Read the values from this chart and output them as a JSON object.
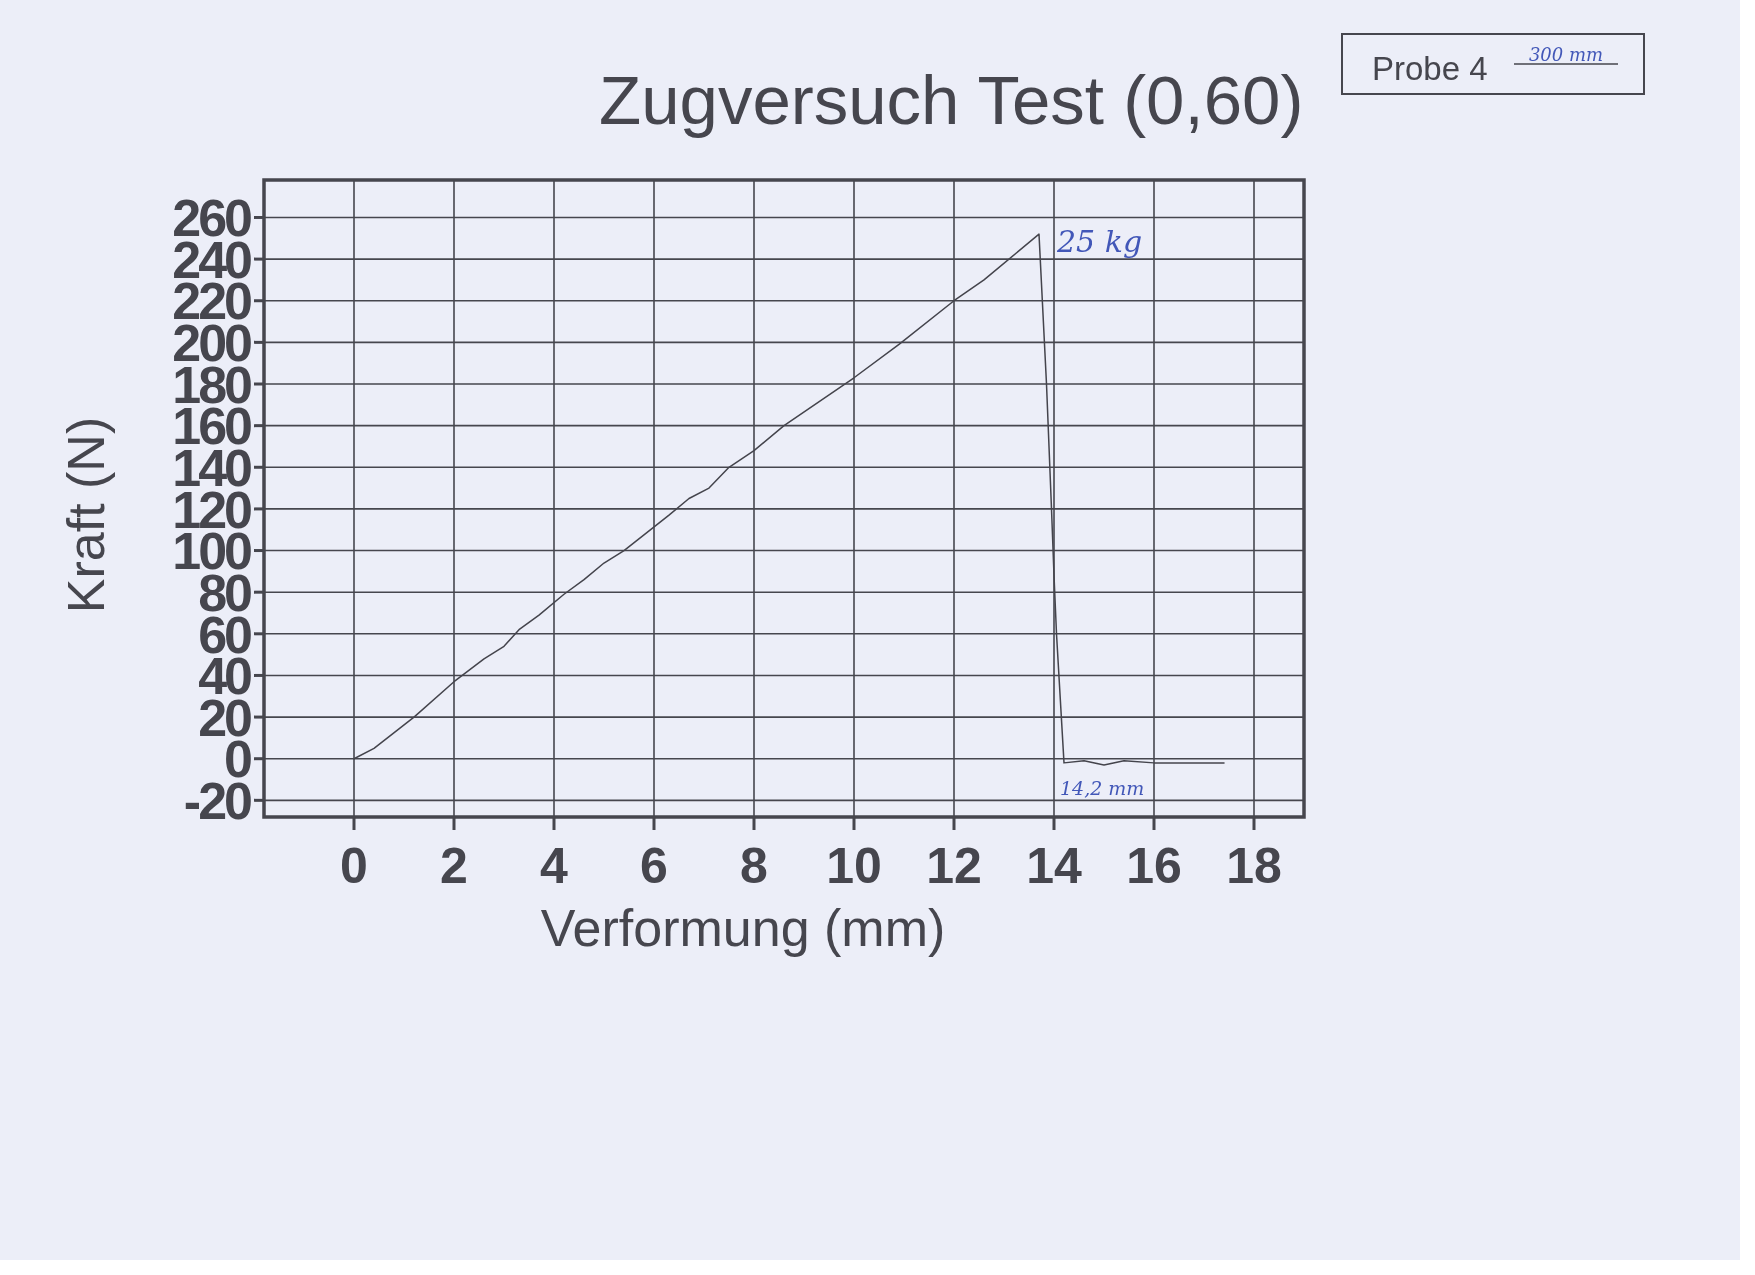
{
  "chart_data": {
    "type": "line",
    "title": "Zugversuch Test (0,60)",
    "xlabel": "Verformung (mm)",
    "ylabel": "Kraft (N)",
    "x": [
      0,
      0.4,
      1.2,
      2.0,
      2.6,
      3.0,
      3.3,
      3.7,
      4.2,
      4.6,
      5.0,
      5.4,
      6.3,
      6.7,
      7.1,
      7.5,
      8.0,
      8.6,
      10.0,
      10.9,
      12.0,
      12.6,
      13.7,
      13.85,
      13.95,
      14.0,
      14.05,
      14.2,
      14.6,
      15.0,
      15.4,
      16.0,
      17.4
    ],
    "series": [
      {
        "color": "#44444c",
        "values": [
          0,
          5,
          20,
          37,
          48,
          54,
          62,
          69,
          79,
          86,
          94,
          100,
          117,
          125,
          130,
          140,
          148,
          160,
          183,
          199,
          220,
          230,
          252,
          180,
          120,
          88,
          60,
          -2,
          -1,
          -3,
          -1,
          -2,
          -2
        ]
      }
    ],
    "xlim": [
      -1.8,
      19
    ],
    "xticks": [
      0,
      2,
      4,
      6,
      8,
      10,
      12,
      14,
      16,
      18
    ],
    "ylim": [
      -28,
      278
    ],
    "yticks": [
      -20,
      0,
      20,
      40,
      60,
      80,
      100,
      120,
      140,
      160,
      180,
      200,
      220,
      240,
      260
    ],
    "grid": true,
    "annotations": [
      "Probe 4",
      "300 mm",
      {
        "text": "25 kg",
        "x": 13.7,
        "y": 252
      },
      {
        "text": "14,2 mm",
        "x": 14.2,
        "y": -2
      }
    ]
  }
}
